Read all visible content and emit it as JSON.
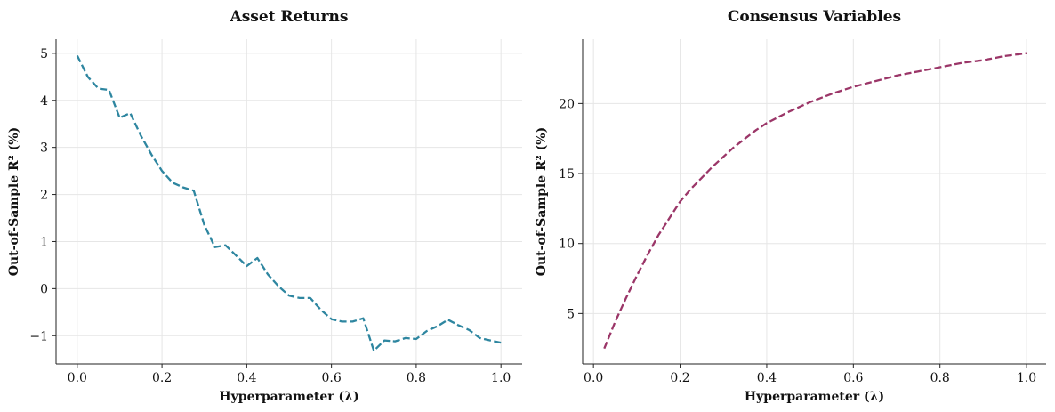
{
  "chart_data": [
    {
      "type": "line",
      "title": "Asset Returns",
      "xlabel": "Hyperparameter (λ)",
      "ylabel": "Out-of-Sample R² (%)",
      "xlim": [
        -0.05,
        1.05
      ],
      "ylim": [
        -1.6,
        5.3
      ],
      "xticks": [
        0.0,
        0.2,
        0.4,
        0.6,
        0.8,
        1.0
      ],
      "xtick_labels": [
        "0.0",
        "0.2",
        "0.4",
        "0.6",
        "0.8",
        "1.0"
      ],
      "yticks": [
        -1,
        0,
        1,
        2,
        3,
        4,
        5
      ],
      "ytick_labels": [
        "−1",
        "0",
        "1",
        "2",
        "3",
        "4",
        "5"
      ],
      "grid": true,
      "line_style": "dashed",
      "color": "#2e86a0",
      "series": [
        {
          "x": [
            0.0,
            0.025,
            0.05,
            0.075,
            0.1,
            0.125,
            0.15,
            0.175,
            0.2,
            0.225,
            0.25,
            0.275,
            0.3,
            0.325,
            0.35,
            0.375,
            0.4,
            0.425,
            0.45,
            0.475,
            0.5,
            0.525,
            0.55,
            0.575,
            0.6,
            0.625,
            0.65,
            0.675,
            0.7,
            0.725,
            0.75,
            0.775,
            0.8,
            0.825,
            0.85,
            0.875,
            0.9,
            0.925,
            0.95,
            0.975,
            1.0
          ],
          "y": [
            4.95,
            4.5,
            4.25,
            4.22,
            3.63,
            3.73,
            3.25,
            2.85,
            2.5,
            2.25,
            2.15,
            2.08,
            1.35,
            0.88,
            0.92,
            0.7,
            0.48,
            0.65,
            0.3,
            0.05,
            -0.15,
            -0.2,
            -0.2,
            -0.45,
            -0.65,
            -0.7,
            -0.7,
            -0.63,
            -1.32,
            -1.1,
            -1.12,
            -1.05,
            -1.07,
            -0.9,
            -0.8,
            -0.66,
            -0.78,
            -0.88,
            -1.05,
            -1.1,
            -1.15
          ]
        }
      ]
    },
    {
      "type": "line",
      "title": "Consensus Variables",
      "xlabel": "Hyperparameter (λ)",
      "ylabel": "Out-of-Sample R² (%)",
      "xlim": [
        -0.025,
        1.045
      ],
      "ylim": [
        1.4,
        24.6
      ],
      "xticks": [
        0.0,
        0.2,
        0.4,
        0.6,
        0.8,
        1.0
      ],
      "xtick_labels": [
        "0.0",
        "0.2",
        "0.4",
        "0.6",
        "0.8",
        "1.0"
      ],
      "yticks": [
        5,
        10,
        15,
        20
      ],
      "ytick_labels": [
        "5",
        "10",
        "15",
        "20"
      ],
      "grid": true,
      "line_style": "dashed",
      "color": "#9b3668",
      "series": [
        {
          "x": [
            0.025,
            0.05,
            0.075,
            0.1,
            0.125,
            0.15,
            0.175,
            0.2,
            0.225,
            0.25,
            0.275,
            0.3,
            0.325,
            0.35,
            0.375,
            0.4,
            0.45,
            0.5,
            0.55,
            0.6,
            0.65,
            0.7,
            0.75,
            0.8,
            0.85,
            0.9,
            0.95,
            1.0
          ],
          "y": [
            2.5,
            4.4,
            6.1,
            7.7,
            9.2,
            10.6,
            11.8,
            13.0,
            13.9,
            14.7,
            15.5,
            16.2,
            16.9,
            17.5,
            18.1,
            18.6,
            19.4,
            20.1,
            20.7,
            21.2,
            21.6,
            22.0,
            22.3,
            22.6,
            22.9,
            23.1,
            23.4,
            23.6
          ]
        }
      ]
    }
  ]
}
